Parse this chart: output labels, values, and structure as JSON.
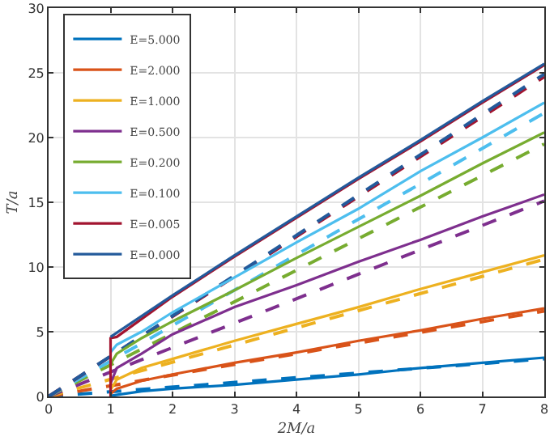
{
  "chart_data": {
    "type": "line",
    "xlabel": "2M/a",
    "ylabel": "T/a",
    "xlim": [
      0,
      8
    ],
    "ylim": [
      0,
      30
    ],
    "xticks": [
      0,
      1,
      2,
      3,
      4,
      5,
      6,
      7,
      8
    ],
    "yticks": [
      0,
      5,
      10,
      15,
      20,
      25,
      30
    ],
    "grid": true,
    "legend": "top left",
    "marker": "none",
    "series": [
      {
        "name": "E=5.000",
        "color": "#0072bd",
        "line_style": "solid",
        "x": [
          1,
          1.5,
          2,
          3,
          4,
          5,
          6,
          7,
          8
        ],
        "values": [
          0.05,
          0.4,
          0.6,
          0.9,
          1.3,
          1.7,
          2.2,
          2.6,
          3.0
        ]
      },
      {
        "name": "E=2.000",
        "color": "#d95319",
        "line_style": "solid",
        "x": [
          1,
          1.1,
          1.5,
          2,
          3,
          4,
          5,
          6,
          7,
          8
        ],
        "values": [
          0.2,
          0.6,
          1.2,
          1.7,
          2.6,
          3.4,
          4.3,
          5.1,
          6.0,
          6.8
        ]
      },
      {
        "name": "E=1.000",
        "color": "#edb120",
        "line_style": "solid",
        "x": [
          1,
          1.1,
          1.5,
          2,
          3,
          4,
          5,
          6,
          7,
          8
        ],
        "values": [
          0.5,
          1.3,
          2.2,
          2.9,
          4.3,
          5.6,
          6.9,
          8.3,
          9.6,
          10.9
        ]
      },
      {
        "name": "E=0.500",
        "color": "#7e2f8e",
        "line_style": "solid",
        "x": [
          1,
          1.1,
          1.5,
          2,
          3,
          4,
          5,
          6,
          7,
          8
        ],
        "values": [
          1.0,
          2.2,
          3.3,
          4.8,
          6.9,
          8.6,
          10.4,
          12.1,
          13.9,
          15.6
        ]
      },
      {
        "name": "E=0.200",
        "color": "#77ac30",
        "line_style": "solid",
        "x": [
          1,
          1.1,
          1.5,
          2,
          3,
          4,
          5,
          6,
          7,
          8
        ],
        "values": [
          2.5,
          3.3,
          4.5,
          5.8,
          8.2,
          10.7,
          13.1,
          15.5,
          18.0,
          20.4
        ]
      },
      {
        "name": "E=0.100",
        "color": "#4dbeee",
        "line_style": "solid",
        "x": [
          1,
          1.1,
          1.5,
          2,
          3,
          4,
          5,
          6,
          7,
          8
        ],
        "values": [
          3.4,
          4.0,
          5.0,
          6.5,
          9.2,
          11.9,
          14.5,
          17.4,
          20.0,
          22.7
        ]
      },
      {
        "name": "E=0.005",
        "color": "#a2142f",
        "line_style": "solid",
        "x": [
          1,
          1,
          1.1,
          2,
          3,
          4,
          5,
          6,
          7,
          8
        ],
        "values": [
          0,
          4.5,
          4.6,
          7.7,
          10.8,
          13.8,
          16.8,
          19.7,
          22.7,
          25.6
        ]
      },
      {
        "name": "E=0.000",
        "color": "#235a9b",
        "line_style": "solid",
        "x": [
          1,
          2,
          3,
          4,
          5,
          6,
          7,
          8
        ],
        "values": [
          4.6,
          7.8,
          10.9,
          13.9,
          16.9,
          19.8,
          22.8,
          25.7
        ]
      },
      {
        "color": "#0072bd",
        "line_style": "dashed",
        "x": [
          0,
          8
        ],
        "values": [
          0,
          2.9
        ]
      },
      {
        "color": "#d95319",
        "line_style": "dashed",
        "x": [
          0,
          8
        ],
        "values": [
          0,
          6.6
        ]
      },
      {
        "color": "#edb120",
        "line_style": "dashed",
        "x": [
          0,
          8
        ],
        "values": [
          0,
          10.6
        ]
      },
      {
        "color": "#7e2f8e",
        "line_style": "dashed",
        "x": [
          0,
          8
        ],
        "values": [
          0,
          15.1
        ]
      },
      {
        "color": "#77ac30",
        "line_style": "dashed",
        "x": [
          0,
          8
        ],
        "values": [
          0,
          19.5
        ]
      },
      {
        "color": "#4dbeee",
        "line_style": "dashed",
        "x": [
          0,
          8
        ],
        "values": [
          0,
          21.9
        ]
      },
      {
        "color": "#a2142f",
        "line_style": "dashed",
        "x": [
          0,
          8
        ],
        "values": [
          0,
          24.7
        ]
      },
      {
        "color": "#235a9b",
        "line_style": "dashed",
        "x": [
          0,
          8
        ],
        "values": [
          0,
          24.9
        ]
      }
    ]
  }
}
